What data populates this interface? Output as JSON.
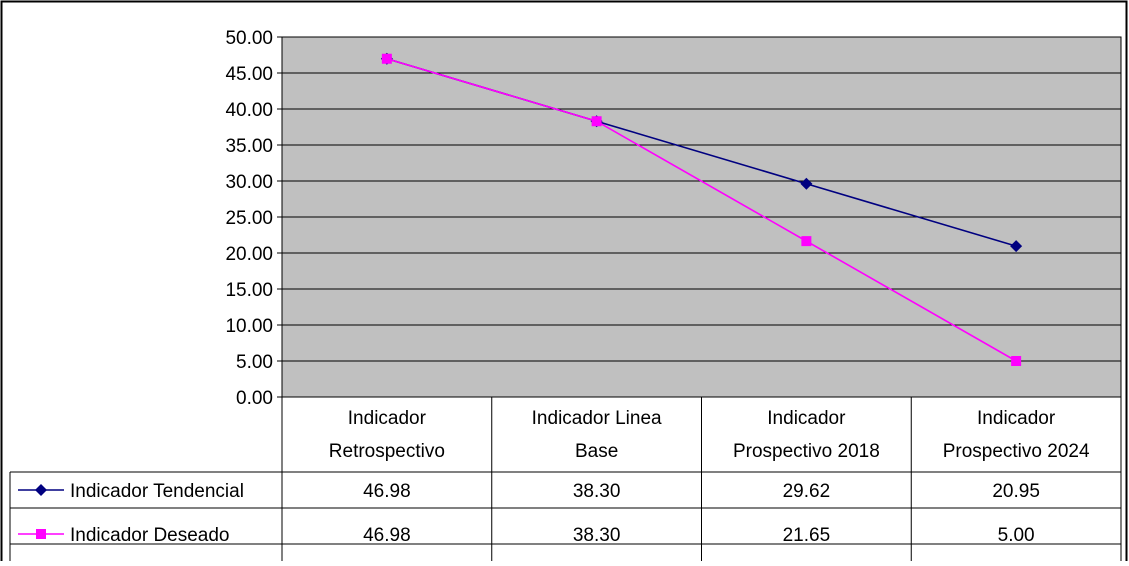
{
  "chart_data": {
    "type": "line",
    "title": "",
    "xlabel": "",
    "ylabel": "",
    "ylim": [
      0,
      50
    ],
    "y_ticks": [
      "0.00",
      "5.00",
      "10.00",
      "15.00",
      "20.00",
      "25.00",
      "30.00",
      "35.00",
      "40.00",
      "45.00",
      "50.00"
    ],
    "categories": [
      [
        "Indicador",
        "Retrospectivo"
      ],
      [
        "Indicador Linea",
        "Base"
      ],
      [
        "Indicador",
        "Prospectivo 2018"
      ],
      [
        "Indicador",
        "Prospectivo 2024"
      ]
    ],
    "grid": true,
    "legend": "data-table-left",
    "series": [
      {
        "name": "Indicador Tendencial",
        "color": "#000080",
        "marker": "diamond",
        "values": [
          46.98,
          38.3,
          29.62,
          20.95
        ],
        "labels": [
          "46.98",
          "38.30",
          "29.62",
          "20.95"
        ]
      },
      {
        "name": "Indicador Deseado",
        "color": "#FF00FF",
        "marker": "square",
        "values": [
          46.98,
          38.3,
          21.65,
          5.0
        ],
        "labels": [
          "46.98",
          "38.30",
          "21.65",
          "5.00"
        ]
      }
    ],
    "plot_background": "#C0C0C0"
  }
}
